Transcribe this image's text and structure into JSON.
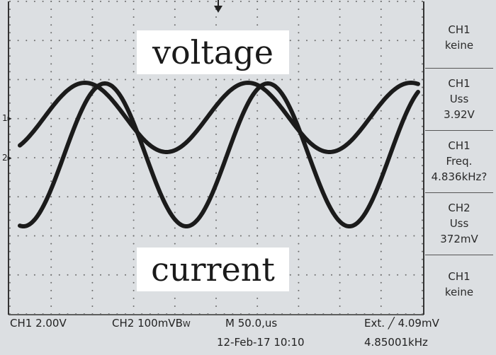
{
  "overlay": {
    "voltage_label": "voltage",
    "current_label": "current"
  },
  "markers": {
    "ch1": "1",
    "ch2": "2"
  },
  "side_panel": [
    {
      "lines": [
        "CH1",
        "keine"
      ]
    },
    {
      "lines": [
        "CH1",
        "Uss",
        "3.92V"
      ]
    },
    {
      "lines": [
        "CH1",
        "Freq.",
        "4.836kHz?"
      ]
    },
    {
      "lines": [
        "CH2",
        "Uss",
        "372mV"
      ]
    },
    {
      "lines": [
        "CH1",
        "keine"
      ]
    }
  ],
  "status_bar": {
    "ch1_scale": "CH1  2.00V",
    "ch2_scale": "CH2  100mVB",
    "bw_suffix": "W",
    "timebase": "M 50.0,us",
    "trigger": "Ext. ╱ 4.09mV",
    "date_time": "12-Feb-17 10:10",
    "trigger_freq": "4.85001kHz"
  },
  "colors": {
    "screen": "#dcdfe2",
    "trace": "#1b1b1b",
    "label_bg": "#ffffff"
  }
}
